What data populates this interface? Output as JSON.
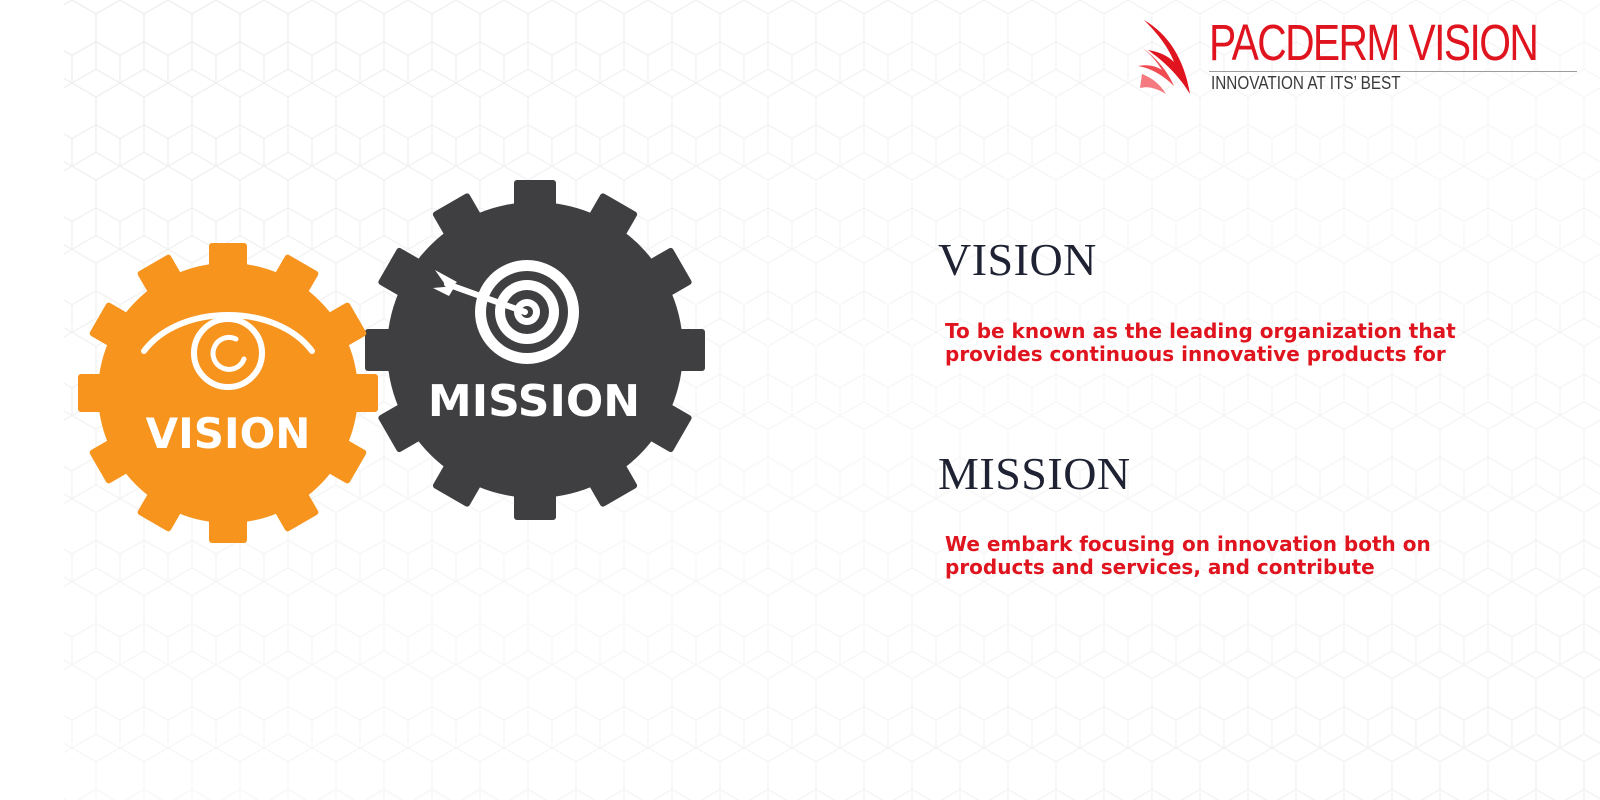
{
  "brand": {
    "name": "PACDERM VISION",
    "tagline": "INNOVATION AT ITS’ BEST",
    "color": "#e0141e"
  },
  "gears": {
    "vision": {
      "label": "VISION",
      "color": "#f7941d",
      "icon": "eye-icon"
    },
    "mission": {
      "label": "MISSION",
      "color": "#3f3f42",
      "icon": "target-arrow-icon"
    }
  },
  "sections": {
    "vision": {
      "heading": "VISION",
      "text_line1": "To be known as the leading organization that",
      "text_line2": "provides continuous innovative products for"
    },
    "mission": {
      "heading": "MISSION",
      "text_line1": "We embark focusing on innovation both on",
      "text_line2": "products and services, and contribute"
    }
  },
  "colors": {
    "heading": "#1f2233",
    "statement": "#e0141e",
    "background": "#ffffff"
  }
}
